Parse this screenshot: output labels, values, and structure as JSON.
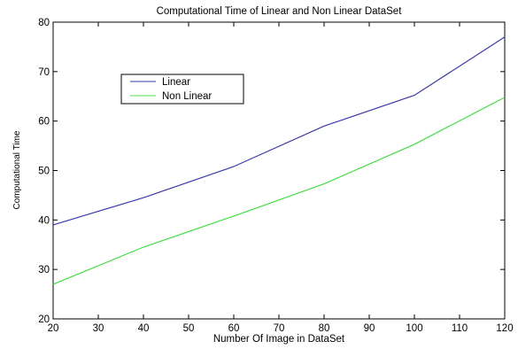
{
  "chart_data": {
    "type": "line",
    "title": "Computational Time of Linear and Non Linear DataSet",
    "xlabel": "Number Of Image in DataSet",
    "ylabel": "Computational Time",
    "xlim": [
      20,
      120
    ],
    "ylim": [
      20,
      80
    ],
    "xticks": [
      20,
      30,
      40,
      50,
      60,
      70,
      80,
      90,
      100,
      110,
      120
    ],
    "yticks": [
      20,
      30,
      40,
      50,
      60,
      70,
      80
    ],
    "grid": false,
    "legend_position": "upper-left",
    "series": [
      {
        "name": "Linear",
        "color": "#3a3aa8",
        "x": [
          20,
          40,
          60,
          80,
          100,
          120
        ],
        "y": [
          39,
          44.5,
          50.8,
          59,
          65.2,
          77
        ]
      },
      {
        "name": "Non Linear",
        "color": "#44dd44",
        "x": [
          20,
          40,
          60,
          80,
          100,
          120
        ],
        "y": [
          27,
          34.5,
          40.8,
          47.3,
          55.3,
          64.8
        ]
      }
    ]
  }
}
